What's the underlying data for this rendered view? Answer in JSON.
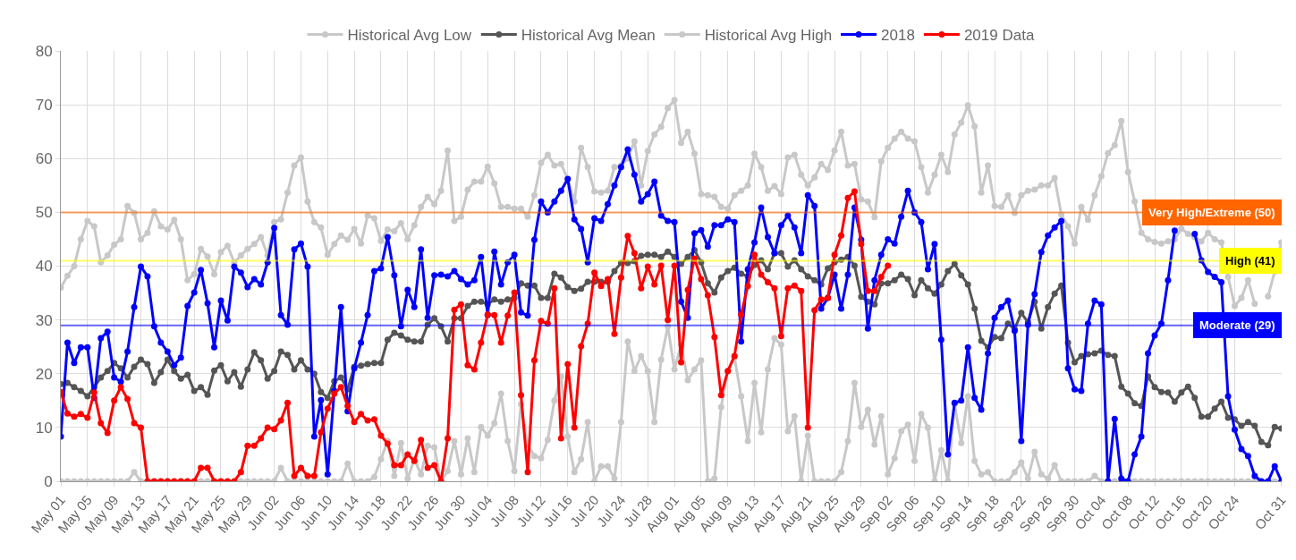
{
  "chart_data": {
    "type": "line",
    "x": [
      "--05-01",
      "--05-02",
      "--05-03",
      "--05-04",
      "--05-05",
      "--05-06",
      "--05-07",
      "--05-08",
      "--05-09",
      "--05-10",
      "--05-11",
      "--05-12",
      "--05-13",
      "--05-14",
      "--05-15",
      "--05-16",
      "--05-17",
      "--05-18",
      "--05-19",
      "--05-20",
      "--05-21",
      "--05-22",
      "--05-23",
      "--05-24",
      "--05-25",
      "--05-26",
      "--05-27",
      "--05-28",
      "--05-29",
      "--05-30",
      "--05-31",
      "--06-01",
      "--06-02",
      "--06-03",
      "--06-04",
      "--06-05",
      "--06-06",
      "--06-07",
      "--06-08",
      "--06-09",
      "--06-10",
      "--06-11",
      "--06-12",
      "--06-13",
      "--06-14",
      "--06-15",
      "--06-16",
      "--06-17",
      "--06-18",
      "--06-19",
      "--06-20",
      "--06-21",
      "--06-22",
      "--06-23",
      "--06-24",
      "--06-25",
      "--06-26",
      "--06-27",
      "--06-28",
      "--06-29",
      "--06-30",
      "--07-01",
      "--07-02",
      "--07-03",
      "--07-04",
      "--07-05",
      "--07-06",
      "--07-07",
      "--07-08",
      "--07-09",
      "--07-10",
      "--07-11",
      "--07-12",
      "--07-13",
      "--07-14",
      "--07-15",
      "--07-16",
      "--07-17",
      "--07-18",
      "--07-19",
      "--07-20",
      "--07-21",
      "--07-22",
      "--07-23",
      "--07-24",
      "--07-25",
      "--07-26",
      "--07-27",
      "--07-28",
      "--07-29",
      "--07-30",
      "--07-31",
      "--08-01",
      "--08-02",
      "--08-03",
      "--08-04",
      "--08-05",
      "--08-06",
      "--08-07",
      "--08-08",
      "--08-09",
      "--08-10",
      "--08-11",
      "--08-12",
      "--08-13",
      "--08-14",
      "--08-15",
      "--08-16",
      "--08-17",
      "--08-18",
      "--08-19",
      "--08-20",
      "--08-21",
      "--08-22",
      "--08-23",
      "--08-24",
      "--08-25",
      "--08-26",
      "--08-27",
      "--08-28",
      "--08-29",
      "--08-30",
      "--08-31",
      "--09-01",
      "--09-02",
      "--09-03",
      "--09-04",
      "--09-05",
      "--09-06",
      "--09-07",
      "--09-08",
      "--09-09",
      "--09-10",
      "--09-11",
      "--09-12",
      "--09-13",
      "--09-14",
      "--09-15",
      "--09-16",
      "--09-17",
      "--09-18",
      "--09-19",
      "--09-20",
      "--09-21",
      "--09-22",
      "--09-23",
      "--09-24",
      "--09-25",
      "--09-26",
      "--09-27",
      "--09-28",
      "--09-29",
      "--09-30",
      "--10-01",
      "--10-02",
      "--10-03",
      "--10-04",
      "--10-05",
      "--10-06",
      "--10-07",
      "--10-08",
      "--10-09",
      "--10-10",
      "--10-11",
      "--10-12",
      "--10-13",
      "--10-14",
      "--10-15",
      "--10-16",
      "--10-17",
      "--10-18",
      "--10-19",
      "--10-20",
      "--10-21",
      "--10-22",
      "--10-23",
      "--10-24",
      "--10-25",
      "--10-26",
      "--10-27",
      "--10-28",
      "--10-29",
      "--10-30",
      "--10-31"
    ],
    "series": [
      {
        "name": "Historical Avg Low",
        "color": "#c8c8c8",
        "values": [
          0,
          0,
          0,
          0,
          0,
          0,
          0,
          0,
          0,
          0,
          0,
          1.7,
          0,
          0,
          0,
          0,
          0,
          0,
          0,
          0,
          0,
          0,
          0,
          0,
          0,
          0,
          0,
          0,
          0,
          0,
          0,
          0,
          0,
          2.5,
          0,
          0,
          0,
          0,
          0,
          0,
          0,
          0,
          0,
          3.3,
          0,
          0,
          0,
          0.8,
          4.1,
          7.5,
          1,
          7.1,
          0.5,
          4.1,
          1.3,
          6.6,
          6.3,
          0,
          1.9,
          7.5,
          1.3,
          8,
          1.7,
          10.1,
          8.5,
          10.8,
          16.3,
          7.5,
          1.9,
          14.3,
          6.8,
          4.7,
          4.3,
          7.7,
          15,
          19.5,
          8.3,
          1.7,
          4.1,
          11,
          0,
          2.8,
          2.8,
          0.5,
          11,
          26,
          20.5,
          23.3,
          20.5,
          11,
          22.6,
          28.8,
          20.8,
          25.4,
          18.8,
          20.8,
          22.5,
          0,
          0.5,
          13.8,
          20.5,
          23,
          15.8,
          7.5,
          18.3,
          9.1,
          20.8,
          26.6,
          25.4,
          9.3,
          12.1,
          0,
          8.5,
          0,
          0,
          0,
          0,
          1.7,
          7.5,
          18.3,
          10.1,
          13.3,
          6.8,
          12.1,
          1.3,
          4.3,
          9.3,
          10.5,
          3.8,
          12.5,
          10,
          0,
          5.8,
          0,
          14.3,
          7.1,
          15.8,
          3.8,
          1.3,
          1.7,
          0,
          0,
          0,
          1.7,
          3.5,
          0.5,
          5.5,
          1.3,
          0.5,
          3,
          0,
          0,
          0,
          0,
          0,
          1,
          0,
          0,
          0,
          0,
          0,
          0,
          0,
          0,
          0,
          0,
          0,
          0,
          0,
          0,
          0,
          0,
          0,
          0,
          0,
          0,
          0,
          0,
          0,
          0,
          0,
          0,
          0,
          0
        ]
      },
      {
        "name": "Historical Avg Mean",
        "color": "#555555",
        "values": [
          18.1,
          18.3,
          17.5,
          16.8,
          15.8,
          17.5,
          19.3,
          20.5,
          22,
          21,
          19.3,
          21.3,
          22.6,
          21.8,
          18.3,
          20.3,
          22.6,
          20.5,
          19.1,
          19.8,
          16.8,
          17.5,
          16.1,
          20.6,
          21.6,
          18.6,
          20.3,
          17.6,
          20.8,
          24,
          22.5,
          19.1,
          20.5,
          24.1,
          23.5,
          20.8,
          22.5,
          20.8,
          20,
          16.6,
          15.5,
          18.6,
          19.3,
          17.1,
          21.3,
          21.5,
          21.8,
          22,
          22,
          26.3,
          27.6,
          27.1,
          26.3,
          26,
          26,
          29.1,
          30.3,
          28.8,
          26,
          30.3,
          30.3,
          32.6,
          33.4,
          33.4,
          32.9,
          33.8,
          33.4,
          33.8,
          34.1,
          36.8,
          36.4,
          36.4,
          34.1,
          34.1,
          38.6,
          37.9,
          36.1,
          35.4,
          35.8,
          37.1,
          37.1,
          37.1,
          37.1,
          39.1,
          40.6,
          40.6,
          40.9,
          41.9,
          42.1,
          42.1,
          41.7,
          42.7,
          41.7,
          40.4,
          41.7,
          43,
          40.7,
          36.8,
          35.1,
          37.9,
          39.1,
          39.7,
          38.6,
          38.1,
          40.2,
          41.1,
          39.4,
          42.4,
          42.4,
          39.9,
          41.1,
          39.4,
          38.1,
          37.4,
          36.6,
          39.6,
          40.7,
          41.2,
          41.7,
          40.1,
          34.3,
          33.4,
          32.9,
          36.8,
          36.8,
          37.4,
          38.4,
          37.6,
          34.6,
          37.4,
          35.9,
          34.9,
          36.6,
          39.1,
          40.4,
          38.3,
          36.6,
          32.1,
          26.1,
          24.9,
          26.8,
          26.6,
          29.3,
          28.3,
          31.3,
          29.6,
          33.4,
          28.4,
          32.4,
          34.9,
          36.4,
          25.8,
          22.1,
          23.3,
          23.6,
          23.8,
          24.3,
          23.5,
          23.3,
          17.6,
          16.3,
          14.5,
          14,
          19.5,
          17.5,
          16.6,
          16.5,
          14.8,
          16.5,
          17.6,
          15.5,
          12,
          12,
          13.5,
          14.8,
          11.8,
          11.5,
          10.3,
          11,
          10.3,
          7.3,
          6.7,
          10.1,
          9.8
        ]
      },
      {
        "name": "Historical Avg High",
        "color": "#c8c8c8",
        "values": [
          36,
          38.2,
          40,
          45,
          48.4,
          47.4,
          40.7,
          42,
          44,
          45,
          51.2,
          49.9,
          45,
          46.2,
          50.2,
          47.4,
          46.8,
          48.6,
          45,
          37.4,
          38.5,
          43.2,
          41.8,
          38.5,
          42.6,
          43.8,
          40.7,
          42,
          43.2,
          44.1,
          45.4,
          42,
          48.2,
          48.7,
          53.7,
          58.7,
          60.2,
          52,
          48.2,
          47.2,
          42.1,
          44.1,
          45.7,
          44.9,
          46.9,
          44.2,
          49.4,
          48.9,
          44.7,
          46.8,
          46.5,
          48,
          45,
          47.6,
          51,
          52.9,
          51.5,
          54,
          61.5,
          48.4,
          49.2,
          54.2,
          55.7,
          55.7,
          58.5,
          55.4,
          51,
          51,
          50.7,
          50.7,
          49.2,
          53.2,
          59.2,
          60.7,
          58.7,
          59,
          56.2,
          52,
          62,
          58.4,
          53.9,
          53.7,
          54,
          58.4,
          58.7,
          60,
          63.2,
          55,
          61.4,
          64.5,
          65.9,
          69.4,
          70.9,
          62.9,
          65,
          60.9,
          53.4,
          53.2,
          52.9,
          51,
          50.7,
          53.2,
          54,
          55,
          60.9,
          58.4,
          54,
          54.9,
          53.4,
          60.2,
          60.7,
          57,
          55,
          56.5,
          59,
          57.9,
          61.5,
          65,
          58.7,
          59,
          52.4,
          52,
          49.1,
          59.5,
          62,
          63.7,
          65,
          63.7,
          63.2,
          58.4,
          53.7,
          57,
          60.7,
          57.5,
          64.5,
          66.7,
          69.9,
          66,
          53.7,
          58.7,
          51.2,
          51,
          53.2,
          49.9,
          53.2,
          54,
          54.2,
          55,
          55,
          56.4,
          49.6,
          47.4,
          44.2,
          51,
          48.6,
          53.2,
          56.7,
          61,
          62.5,
          67,
          57.5,
          52,
          46.2,
          45,
          44.5,
          44.2,
          44.6,
          45,
          47,
          46,
          45.4,
          44.6,
          46.2,
          45,
          44.4,
          38,
          32.6,
          34.1,
          37.4,
          33,
          null,
          34.4,
          39,
          44.4
        ]
      },
      {
        "name": "2018",
        "color": "#0000ff",
        "values": [
          8.3,
          25.8,
          22,
          24.9,
          24.9,
          15.5,
          26.6,
          27.8,
          19.3,
          18.5,
          24.1,
          32.4,
          39.9,
          38.1,
          28.8,
          25.8,
          24.1,
          21.6,
          23,
          32.6,
          35.1,
          39.3,
          33.1,
          24.9,
          33.6,
          29.9,
          39.9,
          38.8,
          36.1,
          37.6,
          36.6,
          40.7,
          47.1,
          30.9,
          29.1,
          43.1,
          44.2,
          39.9,
          8.3,
          15.1,
          1.3,
          16.8,
          32.4,
          13,
          21,
          25.8,
          30.9,
          39.1,
          39.6,
          45.4,
          38.3,
          28.8,
          35.6,
          32.4,
          43.1,
          30.4,
          38.3,
          38.4,
          38.1,
          39.1,
          37.6,
          36.6,
          37.4,
          41.7,
          30.9,
          42.7,
          36.6,
          40.7,
          42.1,
          31.4,
          30.8,
          44.9,
          52,
          50,
          52,
          54,
          56.2,
          48.7,
          46.9,
          40.7,
          48.9,
          48.4,
          51.5,
          55,
          58.4,
          61.7,
          57,
          52,
          53.4,
          55.7,
          49.4,
          48.4,
          48.2,
          33.4,
          30.4,
          46.1,
          46.7,
          43.6,
          47.6,
          47.6,
          48.7,
          48.2,
          26,
          39.4,
          44.4,
          50.9,
          45.4,
          42.4,
          47.6,
          49.4,
          47.2,
          42.4,
          53.2,
          51.2,
          32.1,
          34.1,
          38.4,
          32.1,
          38.4,
          50.9,
          44.9,
          28.4,
          37.4,
          42.1,
          45,
          44.2,
          49.2,
          54,
          50,
          48.2,
          39.4,
          44.1,
          26.3,
          5,
          14.6,
          15,
          24.9,
          15.5,
          13.3,
          23.8,
          30.4,
          32.4,
          33.6,
          28,
          7.5,
          29.1,
          34.8,
          42.6,
          45.7,
          47.2,
          48.4,
          21,
          17.1,
          16.8,
          29.3,
          33.6,
          32.9,
          0,
          11.6,
          0.5,
          0,
          5,
          8.3,
          23.8,
          27.1,
          29.3,
          37.4,
          46.6,
          null,
          null,
          46,
          41.1,
          38.9,
          38,
          37,
          15.8,
          9.6,
          6,
          4.7,
          1,
          0,
          0,
          2.8,
          0
        ]
      },
      {
        "name": "2019 Data",
        "color": "#ff0000",
        "values": [
          16.6,
          12.6,
          12,
          12.5,
          11.8,
          16.5,
          10.8,
          9,
          15,
          17.5,
          15.3,
          10.8,
          10,
          0,
          0,
          0,
          0,
          0,
          0,
          0,
          0,
          2.5,
          2.5,
          0,
          0,
          0,
          0,
          1.7,
          6.6,
          6.6,
          8,
          10,
          9.7,
          11.3,
          14.6,
          1,
          2.5,
          1,
          1,
          9.1,
          13.5,
          16.3,
          17.5,
          14,
          11,
          12.5,
          11.3,
          11.5,
          8.5,
          7,
          3,
          3,
          5,
          3.8,
          7.7,
          2.5,
          3,
          0,
          8,
          31.9,
          32.9,
          21.6,
          20.8,
          25.8,
          31,
          30.9,
          25.8,
          30.8,
          35.1,
          16,
          1.7,
          22.5,
          29.8,
          29.3,
          35.9,
          8,
          21.8,
          10,
          25.1,
          29.3,
          38.8,
          36.3,
          37.6,
          27.4,
          37.9,
          45.6,
          42.4,
          35.9,
          39.9,
          36.6,
          40.1,
          30,
          40.1,
          22.1,
          35.6,
          41.4,
          37.6,
          34.6,
          26.8,
          16,
          20.5,
          23.3,
          31,
          36.3,
          42.1,
          38.4,
          37,
          35.9,
          27,
          35.9,
          36.4,
          35.4,
          10,
          31.8,
          33.8,
          34.1,
          42.1,
          45.7,
          52.7,
          53.9,
          44.1,
          35.4,
          35.4,
          38,
          40.1,
          null,
          null,
          null,
          null,
          null,
          null,
          null,
          null,
          null,
          null,
          null,
          null,
          null,
          null,
          null,
          null,
          null,
          null,
          null,
          null,
          null,
          null,
          null,
          null,
          null,
          null,
          null,
          null,
          null,
          null,
          null,
          null,
          null,
          null,
          null,
          null,
          null,
          null,
          null,
          null,
          null,
          null,
          null,
          null,
          null,
          null,
          null,
          null,
          null,
          null,
          null,
          null,
          null,
          null,
          null,
          null,
          null,
          null,
          null
        ]
      }
    ],
    "xlim": [
      "--05-01",
      "--10-31"
    ],
    "xticks": [
      {
        "value": "--05-01",
        "label": "May 01"
      },
      {
        "value": "--05-05",
        "label": "May 05"
      },
      {
        "value": "--05-09",
        "label": "May 09"
      },
      {
        "value": "--05-13",
        "label": "May 13"
      },
      {
        "value": "--05-17",
        "label": "May 17"
      },
      {
        "value": "--05-21",
        "label": "May 21"
      },
      {
        "value": "--05-25",
        "label": "May 25"
      },
      {
        "value": "--05-29",
        "label": "May 29"
      },
      {
        "value": "--06-02",
        "label": "Jun 02"
      },
      {
        "value": "--06-06",
        "label": "Jun 06"
      },
      {
        "value": "--06-10",
        "label": "Jun 10"
      },
      {
        "value": "--06-14",
        "label": "Jun 14"
      },
      {
        "value": "--06-18",
        "label": "Jun 18"
      },
      {
        "value": "--06-22",
        "label": "Jun 22"
      },
      {
        "value": "--06-26",
        "label": "Jun 26"
      },
      {
        "value": "--06-30",
        "label": "Jun 30"
      },
      {
        "value": "--07-04",
        "label": "Jul 04"
      },
      {
        "value": "--07-08",
        "label": "Jul 08"
      },
      {
        "value": "--07-12",
        "label": "Jul 12"
      },
      {
        "value": "--07-16",
        "label": "Jul 16"
      },
      {
        "value": "--07-20",
        "label": "Jul 20"
      },
      {
        "value": "--07-24",
        "label": "Jul 24"
      },
      {
        "value": "--07-28",
        "label": "Jul 28"
      },
      {
        "value": "--08-01",
        "label": "Aug 01"
      },
      {
        "value": "--08-05",
        "label": "Aug 05"
      },
      {
        "value": "--08-09",
        "label": "Aug 09"
      },
      {
        "value": "--08-13",
        "label": "Aug 13"
      },
      {
        "value": "--08-17",
        "label": "Aug 17"
      },
      {
        "value": "--08-21",
        "label": "Aug 21"
      },
      {
        "value": "--08-25",
        "label": "Aug 25"
      },
      {
        "value": "--08-29",
        "label": "Aug 29"
      },
      {
        "value": "--09-02",
        "label": "Sep 02"
      },
      {
        "value": "--09-06",
        "label": "Sep 06"
      },
      {
        "value": "--09-10",
        "label": "Sep 10"
      },
      {
        "value": "--09-14",
        "label": "Sep 14"
      },
      {
        "value": "--09-18",
        "label": "Sep 18"
      },
      {
        "value": "--09-22",
        "label": "Sep 22"
      },
      {
        "value": "--09-26",
        "label": "Sep 26"
      },
      {
        "value": "--09-30",
        "label": "Sep 30"
      },
      {
        "value": "--10-04",
        "label": "Oct 04"
      },
      {
        "value": "--10-08",
        "label": "Oct 08"
      },
      {
        "value": "--10-12",
        "label": "Oct 12"
      },
      {
        "value": "--10-16",
        "label": "Oct 16"
      },
      {
        "value": "--10-20",
        "label": "Oct 20"
      },
      {
        "value": "--10-24",
        "label": "Oct 24"
      },
      {
        "value": "--10-31",
        "label": "Oct 31"
      }
    ],
    "ylim": [
      0,
      80
    ],
    "yticks": [
      0,
      10,
      20,
      30,
      40,
      50,
      60,
      70,
      80
    ],
    "ref_lines": [
      {
        "axis": "y",
        "value": 50,
        "label": "Very High/Extreme (50)",
        "color": "#ff6600"
      },
      {
        "axis": "y",
        "value": 41,
        "label": "High (41)",
        "color": "#ffff00"
      },
      {
        "axis": "y",
        "value": 29,
        "label": "Moderate (29)",
        "color": "#0000ff"
      }
    ],
    "grid": true,
    "legend": "top",
    "marker": "circle",
    "line_style": "solid"
  }
}
